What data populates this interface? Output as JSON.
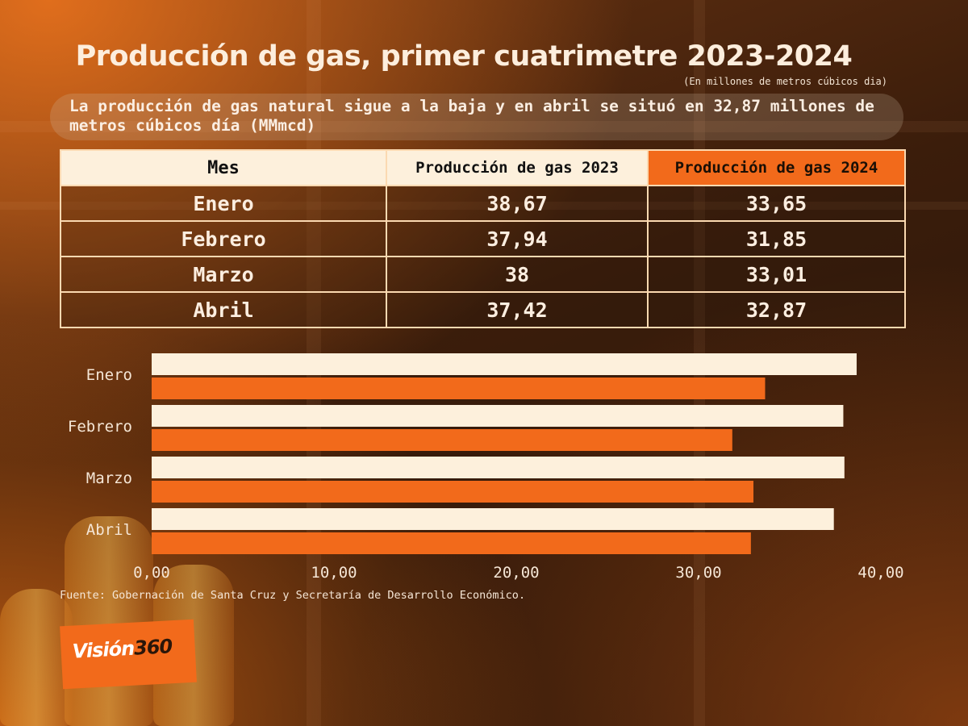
{
  "header": {
    "title": "Producción de gas, primer cuatrimetre 2023-2024",
    "units": "(En millones de metros cúbicos dia)",
    "subtitle": "La producción de gas natural sigue a la baja y en abril se situó en 32,87 millones de metros cúbicos día (MMmcd)"
  },
  "table": {
    "headers": [
      "Mes",
      "Producción de gas 2023",
      "Producción de gas 2024"
    ],
    "rows": [
      [
        "Enero",
        "38,67",
        "33,65"
      ],
      [
        "Febrero",
        "37,94",
        "31,85"
      ],
      [
        "Marzo",
        "38",
        "33,01"
      ],
      [
        "Abril",
        "37,42",
        "32,87"
      ]
    ]
  },
  "chart_data": {
    "type": "bar",
    "orientation": "horizontal",
    "categories": [
      "Enero",
      "Febrero",
      "Marzo",
      "Abril"
    ],
    "series": [
      {
        "values": [
          38.67,
          37.94,
          38,
          37.42
        ],
        "color": "#fdf0dc"
      },
      {
        "values": [
          33.65,
          31.85,
          33.01,
          32.87
        ],
        "color": "#f26a1b"
      }
    ],
    "xlim": [
      0,
      40
    ],
    "xticks": [
      "0,00",
      "10,00",
      "20,00",
      "30,00",
      "40,00"
    ],
    "grid": false,
    "legend": "none"
  },
  "footer": {
    "source": "Fuente: Gobernación de Santa Cruz y Secretaría de Desarrollo Económico.",
    "logo_main": "Visión",
    "logo_num": "360"
  },
  "colors": {
    "accent": "#f26a1b",
    "cream": "#fdf0dc",
    "text": "#fdeee0"
  }
}
